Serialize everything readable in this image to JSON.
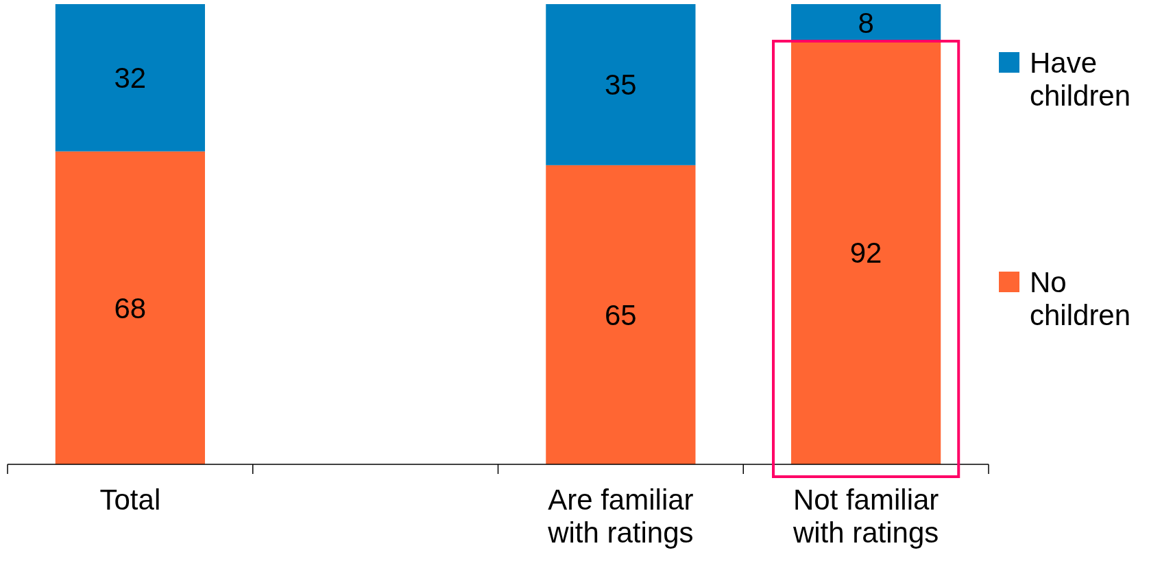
{
  "chart_data": {
    "type": "bar",
    "stacked": true,
    "data_labels": true,
    "legend": "right",
    "categories": [
      "Total",
      null,
      "Are familiar with ratings",
      "Not familiar with ratings"
    ],
    "series": [
      {
        "name": "No children",
        "color": "#ff6633",
        "values": [
          68,
          null,
          65,
          92
        ]
      },
      {
        "name": "Have children",
        "color": "#0080c0",
        "values": [
          32,
          null,
          35,
          8
        ]
      }
    ]
  }
}
